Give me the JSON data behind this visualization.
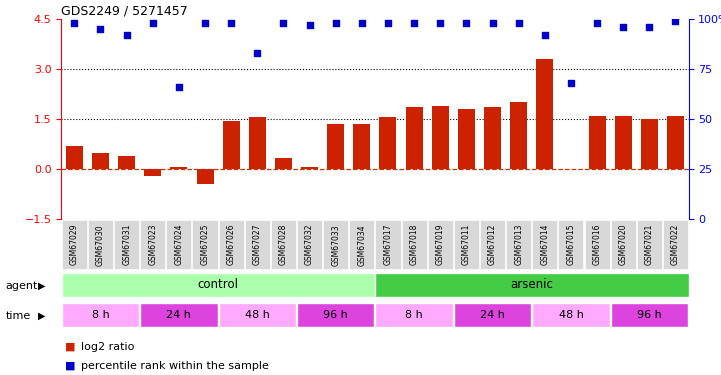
{
  "title": "GDS2249 / 5271457",
  "samples": [
    "GSM67029",
    "GSM67030",
    "GSM67031",
    "GSM67023",
    "GSM67024",
    "GSM67025",
    "GSM67026",
    "GSM67027",
    "GSM67028",
    "GSM67032",
    "GSM67033",
    "GSM67034",
    "GSM67017",
    "GSM67018",
    "GSM67019",
    "GSM67011",
    "GSM67012",
    "GSM67013",
    "GSM67014",
    "GSM67015",
    "GSM67016",
    "GSM67020",
    "GSM67021",
    "GSM67022"
  ],
  "log2_ratio": [
    0.7,
    0.5,
    0.4,
    -0.2,
    0.07,
    -0.45,
    1.45,
    1.55,
    0.35,
    0.08,
    1.35,
    1.35,
    1.55,
    1.85,
    1.9,
    1.8,
    1.85,
    2.0,
    3.3,
    0.02,
    1.6,
    1.6,
    1.5,
    1.6
  ],
  "percentile": [
    98,
    95,
    92,
    98,
    66,
    98,
    98,
    83,
    98,
    97,
    98,
    98,
    98,
    98,
    98,
    98,
    98,
    98,
    92,
    68,
    98,
    96,
    96,
    99
  ],
  "ylim_left": [
    -1.5,
    4.5
  ],
  "ylim_right": [
    0,
    100
  ],
  "yticks_left": [
    -1.5,
    0.0,
    1.5,
    3.0,
    4.5
  ],
  "yticks_right": [
    0,
    25,
    50,
    75,
    100
  ],
  "hlines_dotted": [
    1.5,
    3.0
  ],
  "hline_dashed_red_color": "#cc3300",
  "bar_color": "#cc2200",
  "scatter_color": "#0000cc",
  "agent_color_control": "#aaffaa",
  "agent_color_arsenic": "#44cc44",
  "time_colors": [
    "#ffaaff",
    "#dd44dd",
    "#ffaaff",
    "#dd44dd",
    "#ffaaff",
    "#dd44dd",
    "#ffaaff",
    "#dd44dd"
  ],
  "time_labels": [
    "8 h",
    "24 h",
    "48 h",
    "96 h",
    "8 h",
    "24 h",
    "48 h",
    "96 h"
  ],
  "time_starts": [
    0,
    3,
    6,
    9,
    12,
    15,
    18,
    21
  ],
  "time_ends": [
    3,
    6,
    9,
    12,
    15,
    18,
    21,
    24
  ],
  "legend_red_label": "log2 ratio",
  "legend_blue_label": "percentile rank within the sample",
  "agent_label": "agent",
  "time_label": "time",
  "n_samples": 24,
  "xtick_bg": "#d8d8d8"
}
